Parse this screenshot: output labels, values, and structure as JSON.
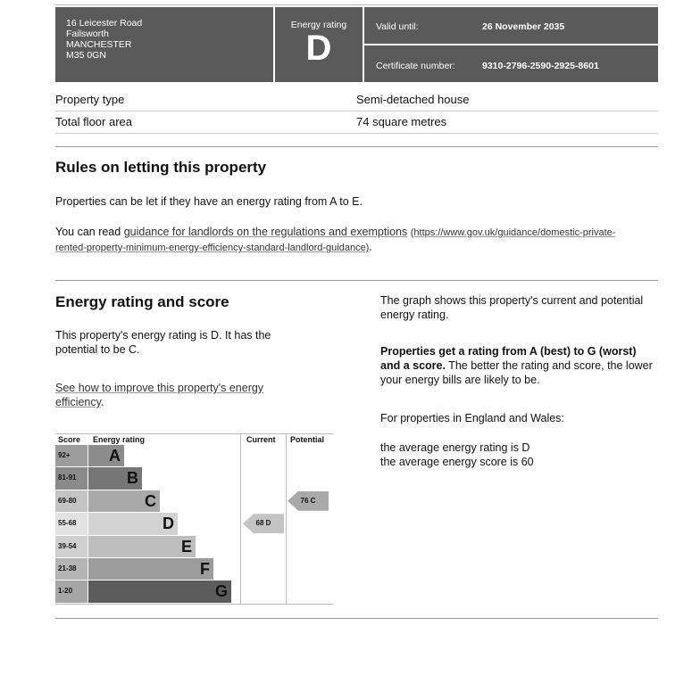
{
  "header": {
    "address": [
      "16 Leicester Road",
      "Failsworth",
      "MANCHESTER",
      "M35 0GN"
    ],
    "rating_label": "Energy rating",
    "rating": "D",
    "valid_label": "Valid until:",
    "valid_value": "26 November 2035",
    "cert_label": "Certificate number:",
    "cert_value": "9310-2796-2590-2925-8601"
  },
  "property": {
    "type_label": "Property type",
    "type_value": "Semi-detached house",
    "area_label": "Total floor area",
    "area_value": "74 square metres"
  },
  "letting": {
    "title": "Rules on letting this property",
    "p1": "Properties can be let if they have an energy rating from A to E.",
    "p2_prefix": "You can read ",
    "link": "guidance for landlords on the regulations and exemptions",
    "url": "(https://www.gov.uk/guidance/domestic-private-rented-property-minimum-energy-efficiency-standard-landlord-guidance)",
    "p2_suffix": "."
  },
  "energy": {
    "title": "Energy rating and score",
    "p1": "This property's energy rating is D. It has the potential to be C.",
    "link": "See how to improve this property's energy efficiency",
    "link_suffix": ".",
    "right_p1": "The graph shows this property's current and potential energy rating.",
    "right_bold": "Properties get a rating from A (best) to G (worst) and a score.",
    "right_p2": " The better the rating and score, the lower your energy bills are likely to be.",
    "right_p3": "For properties in England and Wales:",
    "right_p4": "the average energy rating is D",
    "right_p5": "the average energy score is 60"
  },
  "chart": {
    "headers": {
      "score": "Score",
      "rating": "Energy rating",
      "current": "Current",
      "potential": "Potential"
    },
    "bands": [
      {
        "score": "92+",
        "letter": "A",
        "color": "#8c8c8c",
        "scolor": "#9c9c9c"
      },
      {
        "score": "81-91",
        "letter": "B",
        "color": "#767676",
        "scolor": "#8a8a8a"
      },
      {
        "score": "69-80",
        "letter": "C",
        "color": "#a9a9a9",
        "scolor": "#c4c4c4"
      },
      {
        "score": "55-68",
        "letter": "D",
        "color": "#d2d2d2",
        "scolor": "#e2e2e2"
      },
      {
        "score": "39-54",
        "letter": "E",
        "color": "#bdbdbd",
        "scolor": "#cfcfcf"
      },
      {
        "score": "21-38",
        "letter": "F",
        "color": "#9c9c9c",
        "scolor": "#b4b4b4"
      },
      {
        "score": "1-20",
        "letter": "G",
        "color": "#5c5c5c",
        "scolor": "#a6a6a6"
      }
    ],
    "current": {
      "label": "68  D",
      "band": 3,
      "color": "#c4c4c4"
    },
    "potential": {
      "label": "76  C",
      "band": 2,
      "color": "#a9a9a9"
    }
  }
}
